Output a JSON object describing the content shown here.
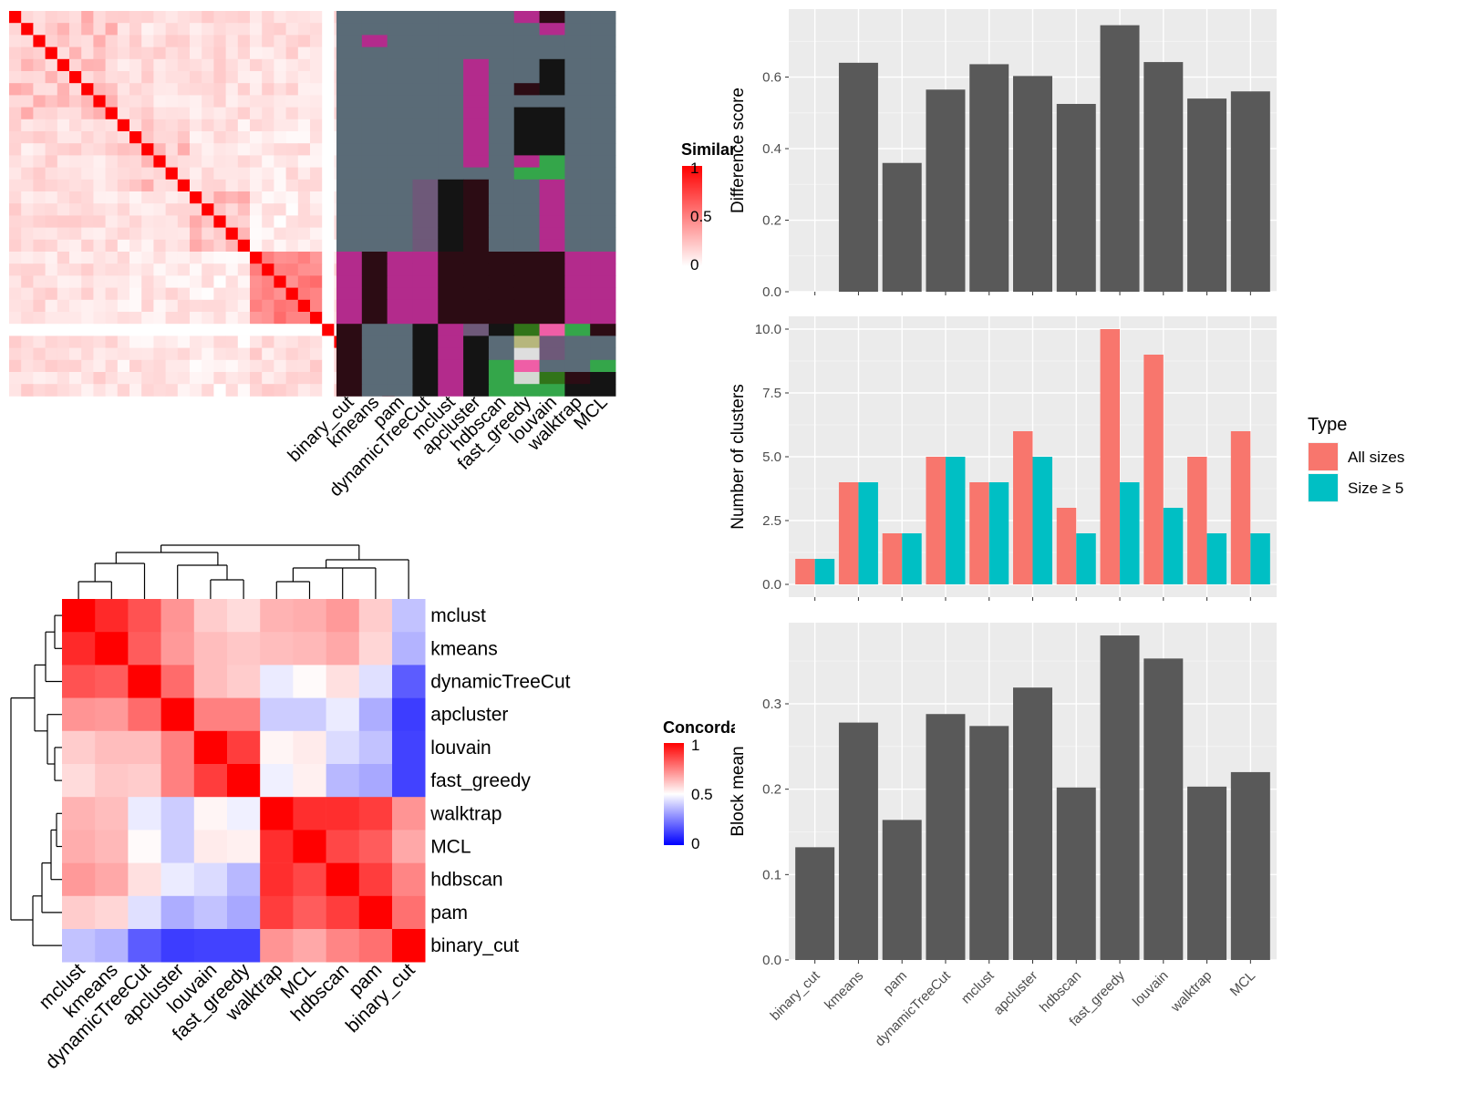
{
  "chart_data": [
    {
      "type": "heatmap",
      "panel": "similarity-matrix",
      "legend": {
        "title": "Similarity",
        "ticks": [
          "1",
          "0.5",
          "0"
        ],
        "colors": [
          "#ffffff",
          "#ff0000"
        ]
      },
      "methods": [
        "binary_cut",
        "kmeans",
        "pam",
        "dynamicTreeCut",
        "mclust",
        "apcluster",
        "hdbscan",
        "fast_greedy",
        "louvain",
        "walktrap",
        "MCL"
      ],
      "blocks": [
        [
          0,
          9
        ],
        [
          9,
          15
        ],
        [
          15,
          20
        ],
        [
          20,
          26
        ],
        [
          26,
          27
        ],
        [
          27,
          32
        ]
      ],
      "classes": [
        {
          "hdbscan": 0,
          "fast_greedy": 1,
          "louvain": 2
        },
        {
          "hdbscan": 0,
          "fast_greedy": 0,
          "louvain": 1
        },
        {
          "kmeans": 1,
          "hdbscan": 0,
          "fast_greedy": 0,
          "louvain": 0
        },
        {
          "hdbscan": 0,
          "fast_greedy": 0,
          "louvain": 0
        },
        {
          "apcluster": 1,
          "fast_greedy": 0,
          "louvain": 3
        },
        {
          "apcluster": 1,
          "fast_greedy": 0,
          "louvain": 3
        },
        {
          "apcluster": 1,
          "fast_greedy": 2,
          "louvain": 3
        },
        {
          "apcluster": 1,
          "fast_greedy": 0,
          "louvain": 0
        },
        {
          "apcluster": 1,
          "fast_greedy": 3,
          "louvain": 3
        },
        {
          "apcluster": 1,
          "fast_greedy": 3,
          "louvain": 3
        },
        {
          "apcluster": 1,
          "fast_greedy": 3,
          "louvain": 3
        },
        {
          "apcluster": 1,
          "fast_greedy": 3,
          "louvain": 3
        },
        {
          "apcluster": 1,
          "fast_greedy": 1,
          "louvain": 4
        },
        {
          "fast_greedy": 4,
          "louvain": 4
        },
        {
          "dynamicTreeCut": 5,
          "mclust": 3,
          "apcluster": 2,
          "hdbscan": 0,
          "fast_greedy": 0,
          "louvain": 1
        },
        {
          "dynamicTreeCut": 5,
          "mclust": 3,
          "apcluster": 2,
          "hdbscan": 0,
          "fast_greedy": 0,
          "louvain": 1
        },
        {
          "dynamicTreeCut": 5,
          "mclust": 3,
          "apcluster": 2,
          "hdbscan": 0,
          "fast_greedy": 0,
          "louvain": 1
        },
        {
          "dynamicTreeCut": 5,
          "mclust": 3,
          "apcluster": 2,
          "hdbscan": 0,
          "fast_greedy": 0,
          "louvain": 1
        },
        {
          "dynamicTreeCut": 5,
          "mclust": 3,
          "apcluster": 2,
          "hdbscan": 0,
          "fast_greedy": 0,
          "louvain": 1
        },
        {
          "dynamicTreeCut": 5,
          "mclust": 3,
          "apcluster": 2,
          "hdbscan": 0,
          "fast_greedy": 0,
          "louvain": 1
        },
        {
          "binary_cut": 1,
          "kmeans": 2,
          "pam": 1,
          "dynamicTreeCut": 1,
          "mclust": 2,
          "apcluster": 2,
          "hdbscan": 2,
          "fast_greedy": 2,
          "louvain": 2,
          "walktrap": 1,
          "MCL": 1
        },
        {
          "binary_cut": 1,
          "kmeans": 2,
          "pam": 1,
          "dynamicTreeCut": 1,
          "mclust": 2,
          "apcluster": 2,
          "hdbscan": 2,
          "fast_greedy": 2,
          "louvain": 2,
          "walktrap": 1,
          "MCL": 1
        },
        {
          "binary_cut": 1,
          "kmeans": 2,
          "pam": 1,
          "dynamicTreeCut": 1,
          "mclust": 2,
          "apcluster": 2,
          "hdbscan": 2,
          "fast_greedy": 2,
          "louvain": 2,
          "walktrap": 1,
          "MCL": 1
        },
        {
          "binary_cut": 1,
          "kmeans": 2,
          "pam": 1,
          "dynamicTreeCut": 1,
          "mclust": 2,
          "apcluster": 2,
          "hdbscan": 2,
          "fast_greedy": 2,
          "louvain": 2,
          "walktrap": 1,
          "MCL": 1
        },
        {
          "binary_cut": 1,
          "kmeans": 2,
          "pam": 1,
          "dynamicTreeCut": 1,
          "mclust": 2,
          "apcluster": 2,
          "hdbscan": 2,
          "fast_greedy": 2,
          "louvain": 2,
          "walktrap": 1,
          "MCL": 1
        },
        {
          "binary_cut": 1,
          "kmeans": 2,
          "pam": 1,
          "dynamicTreeCut": 1,
          "mclust": 2,
          "apcluster": 2,
          "hdbscan": 2,
          "fast_greedy": 2,
          "louvain": 2,
          "walktrap": 1,
          "MCL": 1
        },
        {
          "binary_cut": 2,
          "dynamicTreeCut": 3,
          "mclust": 1,
          "apcluster": 5,
          "hdbscan": 3,
          "fast_greedy": 7,
          "louvain": 6,
          "walktrap": 4,
          "MCL": 2
        },
        {
          "binary_cut": 2,
          "dynamicTreeCut": 3,
          "mclust": 1,
          "apcluster": 3,
          "hdbscan": 0,
          "fast_greedy": 8,
          "louvain": 5
        },
        {
          "binary_cut": 2,
          "dynamicTreeCut": 3,
          "mclust": 1,
          "apcluster": 3,
          "hdbscan": 0,
          "fast_greedy": 9,
          "louvain": 5
        },
        {
          "binary_cut": 2,
          "dynamicTreeCut": 3,
          "mclust": 1,
          "apcluster": 3,
          "hdbscan": 4,
          "fast_greedy": 6,
          "louvain": 0,
          "MCL": 4
        },
        {
          "binary_cut": 2,
          "dynamicTreeCut": 3,
          "mclust": 1,
          "apcluster": 3,
          "hdbscan": 4,
          "fast_greedy": 10,
          "louvain": 7,
          "walktrap": 2,
          "MCL": 3
        },
        {
          "binary_cut": 2,
          "dynamicTreeCut": 3,
          "mclust": 1,
          "apcluster": 3,
          "hdbscan": 4,
          "fast_greedy": 4,
          "louvain": 4,
          "walktrap": 3,
          "MCL": 3
        }
      ],
      "class_colors": [
        "#5a6b77",
        "#b32b8c",
        "#2c0c14",
        "#141414",
        "#34a64a",
        "#6e5979",
        "#ef5ea6",
        "#317419",
        "#b6b67c",
        "#dedede",
        "#d4d9d3"
      ]
    },
    {
      "type": "heatmap",
      "panel": "concordance-matrix",
      "legend": {
        "title": "Concordance",
        "ticks": [
          "1",
          "0.5",
          "0"
        ],
        "colors": [
          "#0000ff",
          "#ffffff",
          "#ff0000"
        ]
      },
      "rows": [
        "mclust",
        "kmeans",
        "dynamicTreeCut",
        "apcluster",
        "louvain",
        "fast_greedy",
        "walktrap",
        "MCL",
        "hdbscan",
        "pam",
        "binary_cut"
      ],
      "columns": [
        "mclust",
        "kmeans",
        "dynamicTreeCut",
        "apcluster",
        "louvain",
        "fast_greedy",
        "walktrap",
        "MCL",
        "hdbscan",
        "pam",
        "binary_cut"
      ],
      "values": [
        [
          1.0,
          0.92,
          0.84,
          0.71,
          0.6,
          0.57,
          0.65,
          0.66,
          0.7,
          0.6,
          0.38
        ],
        [
          0.92,
          1.0,
          0.82,
          0.7,
          0.63,
          0.61,
          0.63,
          0.64,
          0.67,
          0.58,
          0.35
        ],
        [
          0.84,
          0.82,
          1.0,
          0.79,
          0.63,
          0.6,
          0.46,
          0.51,
          0.56,
          0.44,
          0.18
        ],
        [
          0.71,
          0.7,
          0.79,
          1.0,
          0.75,
          0.75,
          0.4,
          0.4,
          0.46,
          0.34,
          0.12
        ],
        [
          0.6,
          0.63,
          0.63,
          0.75,
          1.0,
          0.88,
          0.52,
          0.54,
          0.43,
          0.38,
          0.13
        ],
        [
          0.57,
          0.61,
          0.6,
          0.75,
          0.88,
          1.0,
          0.47,
          0.53,
          0.36,
          0.33,
          0.13
        ],
        [
          0.65,
          0.63,
          0.46,
          0.4,
          0.52,
          0.47,
          1.0,
          0.91,
          0.91,
          0.88,
          0.71
        ],
        [
          0.66,
          0.64,
          0.51,
          0.4,
          0.54,
          0.53,
          0.91,
          1.0,
          0.86,
          0.82,
          0.67
        ],
        [
          0.7,
          0.67,
          0.56,
          0.46,
          0.43,
          0.36,
          0.91,
          0.86,
          1.0,
          0.88,
          0.74
        ],
        [
          0.6,
          0.58,
          0.44,
          0.34,
          0.38,
          0.33,
          0.88,
          0.82,
          0.88,
          1.0,
          0.78
        ],
        [
          0.38,
          0.35,
          0.18,
          0.12,
          0.13,
          0.13,
          0.71,
          0.67,
          0.74,
          0.78,
          1.0
        ]
      ]
    },
    {
      "type": "bar",
      "panel": "difference-score",
      "categories": [
        "binary_cut",
        "kmeans",
        "pam",
        "dynamicTreeCut",
        "mclust",
        "apcluster",
        "hdbscan",
        "fast_greedy",
        "louvain",
        "walktrap",
        "MCL"
      ],
      "values": [
        0.0,
        0.64,
        0.36,
        0.565,
        0.636,
        0.603,
        0.525,
        0.745,
        0.642,
        0.54,
        0.56
      ],
      "ylabel": "Difference score",
      "ylim": [
        0,
        0.79
      ],
      "yticks": [
        0.0,
        0.2,
        0.4,
        0.6
      ],
      "color": "#595959",
      "grid": true
    },
    {
      "type": "bar",
      "panel": "number-of-clusters",
      "categories": [
        "binary_cut",
        "kmeans",
        "pam",
        "dynamicTreeCut",
        "mclust",
        "apcluster",
        "hdbscan",
        "fast_greedy",
        "louvain",
        "walktrap",
        "MCL"
      ],
      "series": [
        {
          "name": "All sizes",
          "color": "#f8766d",
          "values": [
            1,
            4,
            2,
            5,
            4,
            6,
            3,
            10,
            9,
            5,
            6
          ]
        },
        {
          "name": "Size ≥ 5",
          "color": "#00bfc4",
          "values": [
            1,
            4,
            2,
            5,
            4,
            5,
            2,
            4,
            3,
            2,
            2
          ]
        }
      ],
      "ylabel": "Number of clusters",
      "ylim": [
        -0.5,
        10.5
      ],
      "yticks": [
        0.0,
        2.5,
        5.0,
        7.5,
        10.0
      ],
      "legend": {
        "title": "Type",
        "position": "right"
      },
      "grid": true
    },
    {
      "type": "bar",
      "panel": "block-mean",
      "categories": [
        "binary_cut",
        "kmeans",
        "pam",
        "dynamicTreeCut",
        "mclust",
        "apcluster",
        "hdbscan",
        "fast_greedy",
        "louvain",
        "walktrap",
        "MCL"
      ],
      "values": [
        0.132,
        0.278,
        0.164,
        0.288,
        0.274,
        0.319,
        0.202,
        0.38,
        0.353,
        0.203,
        0.22
      ],
      "ylabel": "Block mean",
      "ylim": [
        0,
        0.395
      ],
      "yticks": [
        0.0,
        0.1,
        0.2,
        0.3
      ],
      "color": "#595959",
      "grid": true
    }
  ]
}
